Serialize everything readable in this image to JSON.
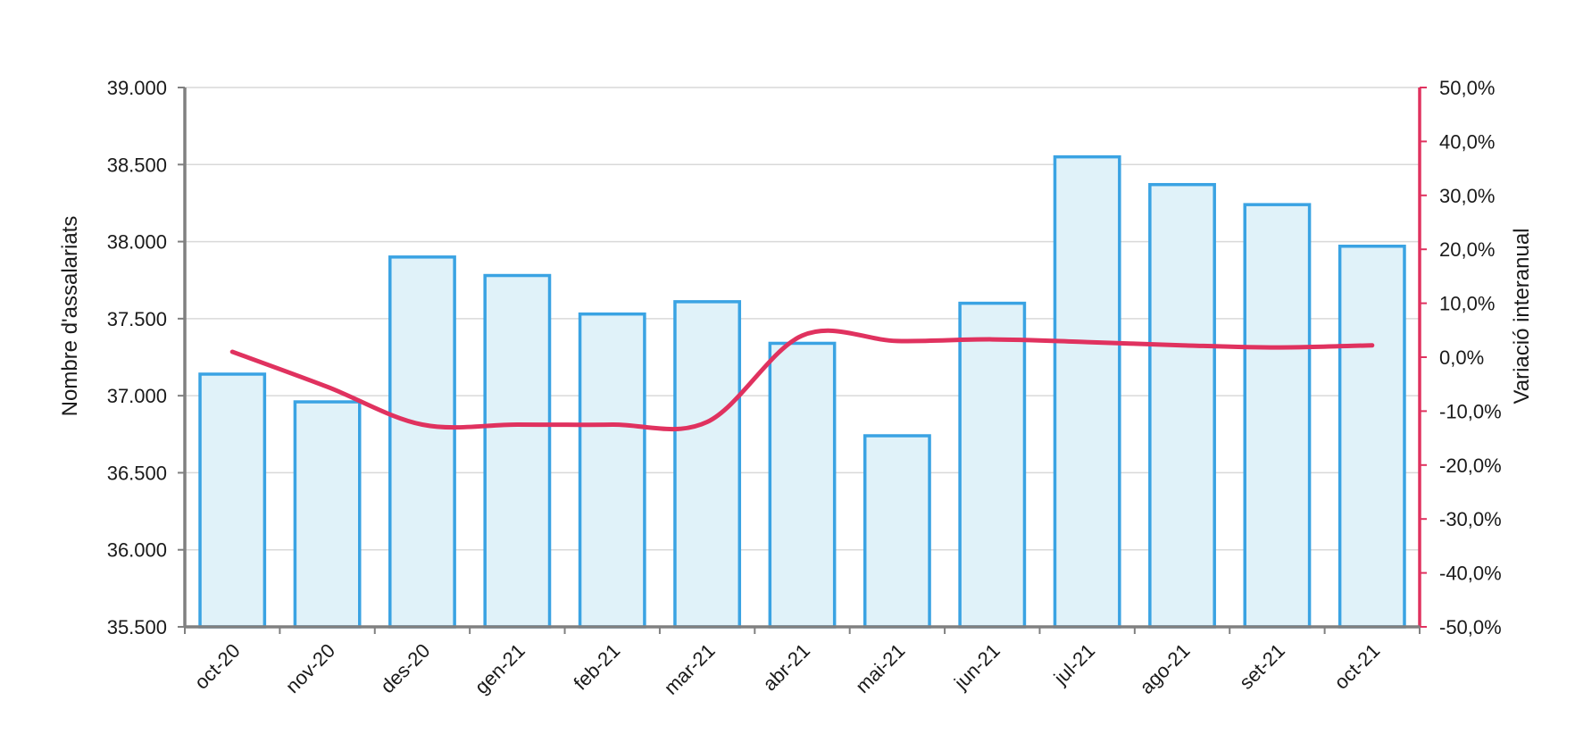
{
  "chart_data": {
    "type": "bar",
    "categories": [
      "oct-20",
      "nov-20",
      "des-20",
      "gen-21",
      "feb-21",
      "mar-21",
      "abr-21",
      "mai-21",
      "jun-21",
      "jul-21",
      "ago-21",
      "set-21",
      "oct-21"
    ],
    "series": [
      {
        "type": "bar",
        "axis": "left",
        "values": [
          37140,
          36960,
          37900,
          37780,
          37530,
          37610,
          37340,
          36740,
          37600,
          38550,
          38370,
          38240,
          37970
        ]
      },
      {
        "type": "line",
        "axis": "right",
        "values": [
          1.0,
          -5.5,
          -12.5,
          -12.5,
          -12.5,
          -12.0,
          4.0,
          3.0,
          3.3,
          2.8,
          2.2,
          1.8,
          2.2
        ]
      }
    ],
    "ylabel": "Nombre d'assalariats",
    "y2label": "Variació interanual",
    "ylim": [
      35500,
      39000
    ],
    "y2lim": [
      -50,
      50
    ],
    "y_ticks": [
      "35.500",
      "36.000",
      "36.500",
      "37.000",
      "37.500",
      "38.000",
      "38.500",
      "39.000"
    ],
    "y2_ticks": [
      "-50,0%",
      "-40,0%",
      "-30,0%",
      "-20,0%",
      "-10,0%",
      "0,0%",
      "10,0%",
      "20,0%",
      "30,0%",
      "40,0%",
      "50,0%"
    ],
    "grid": true,
    "colors": {
      "bar_stroke": "#3aa3e3",
      "bar_fill": "#e0f2f9",
      "line": "#e0325f",
      "left_axis": "#808080",
      "right_axis": "#e0325f",
      "grid": "#d9d9d9"
    }
  }
}
